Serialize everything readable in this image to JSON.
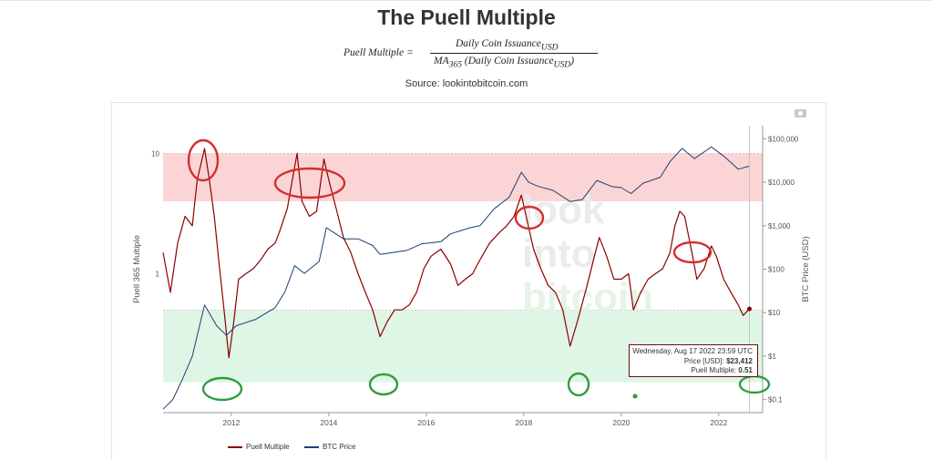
{
  "page": {
    "title": "The Puell Multiple",
    "formula_lhs": "Puell Multiple  =",
    "formula_numerator": "Daily Coin Issuance",
    "formula_num_sub": "USD",
    "formula_den_ma": "MA",
    "formula_den_ma_sub": "365",
    "formula_den_text": " (Daily Coin Issuance",
    "formula_den_sub": "USD",
    "formula_den_close": ")",
    "source": "Source: lookintobitcoin.com",
    "watermark": [
      "look",
      "into",
      "bitcoin"
    ]
  },
  "tooltip": {
    "date": "Wednesday, Aug 17 2022 23:59 UTC",
    "price_label": "Price [USD]: ",
    "price_value": "$23,412",
    "pm_label": "Puell Multiple: ",
    "pm_value": "0.51"
  },
  "chart_data": {
    "type": "line",
    "x_ticks": [
      "2012",
      "2014",
      "2016",
      "2018",
      "2020",
      "2022"
    ],
    "x_range": [
      2010.6,
      2022.9
    ],
    "y_left": {
      "label": "Puell 365 Multiple",
      "scale": "log",
      "range": [
        0.07,
        17
      ],
      "ticks": [
        {
          "value": 10,
          "label": "10"
        },
        {
          "value": 1,
          "label": "1"
        }
      ]
    },
    "y_right": {
      "label": "BTC Price (USD)",
      "scale": "log",
      "range": [
        0.05,
        200000
      ],
      "ticks": [
        {
          "value": 100000,
          "label": "$100,000"
        },
        {
          "value": 10000,
          "label": "$10,000"
        },
        {
          "value": 1000,
          "label": "$1,000"
        },
        {
          "value": 100,
          "label": "$100"
        },
        {
          "value": 10,
          "label": "$10"
        },
        {
          "value": 1,
          "label": "$1"
        },
        {
          "value": 0.1,
          "label": "$0.1"
        }
      ]
    },
    "bands": [
      {
        "zone": "high",
        "from": 4,
        "to": 10,
        "color": "#fbd5d5"
      },
      {
        "zone": "low",
        "from": 0.125,
        "to": 0.5,
        "color": "#dff5e6"
      }
    ],
    "series": [
      {
        "name": "Puell Multiple",
        "axis": "left",
        "color": "#8b0000",
        "points": [
          [
            2010.6,
            1.5
          ],
          [
            2010.75,
            0.7
          ],
          [
            2010.9,
            1.8
          ],
          [
            2011.05,
            3
          ],
          [
            2011.2,
            2.5
          ],
          [
            2011.3,
            6
          ],
          [
            2011.45,
            11
          ],
          [
            2011.55,
            6
          ],
          [
            2011.65,
            3
          ],
          [
            2011.75,
            1.2
          ],
          [
            2011.85,
            0.5
          ],
          [
            2011.95,
            0.2
          ],
          [
            2012.05,
            0.4
          ],
          [
            2012.15,
            0.9
          ],
          [
            2012.3,
            1.0
          ],
          [
            2012.45,
            1.1
          ],
          [
            2012.6,
            1.3
          ],
          [
            2012.75,
            1.6
          ],
          [
            2012.9,
            1.8
          ],
          [
            2013.0,
            2.3
          ],
          [
            2013.15,
            3.5
          ],
          [
            2013.25,
            6
          ],
          [
            2013.35,
            10
          ],
          [
            2013.45,
            4
          ],
          [
            2013.6,
            3
          ],
          [
            2013.75,
            3.3
          ],
          [
            2013.9,
            9
          ],
          [
            2014.0,
            6
          ],
          [
            2014.15,
            3.5
          ],
          [
            2014.3,
            2
          ],
          [
            2014.45,
            1.5
          ],
          [
            2014.6,
            1.0
          ],
          [
            2014.75,
            0.7
          ],
          [
            2014.9,
            0.5
          ],
          [
            2015.05,
            0.3
          ],
          [
            2015.2,
            0.4
          ],
          [
            2015.35,
            0.5
          ],
          [
            2015.5,
            0.5
          ],
          [
            2015.65,
            0.55
          ],
          [
            2015.8,
            0.7
          ],
          [
            2015.95,
            1.1
          ],
          [
            2016.1,
            1.4
          ],
          [
            2016.3,
            1.6
          ],
          [
            2016.5,
            1.2
          ],
          [
            2016.65,
            0.8
          ],
          [
            2016.8,
            0.9
          ],
          [
            2016.95,
            1.0
          ],
          [
            2017.1,
            1.3
          ],
          [
            2017.3,
            1.8
          ],
          [
            2017.5,
            2.2
          ],
          [
            2017.65,
            2.5
          ],
          [
            2017.8,
            3
          ],
          [
            2017.95,
            4.5
          ],
          [
            2018.05,
            3
          ],
          [
            2018.2,
            1.6
          ],
          [
            2018.35,
            1.1
          ],
          [
            2018.5,
            0.8
          ],
          [
            2018.65,
            0.7
          ],
          [
            2018.8,
            0.5
          ],
          [
            2018.95,
            0.25
          ],
          [
            2019.1,
            0.4
          ],
          [
            2019.3,
            0.8
          ],
          [
            2019.45,
            1.4
          ],
          [
            2019.55,
            2.0
          ],
          [
            2019.7,
            1.4
          ],
          [
            2019.85,
            0.9
          ],
          [
            2020.0,
            0.9
          ],
          [
            2020.15,
            1.0
          ],
          [
            2020.25,
            0.5
          ],
          [
            2020.4,
            0.7
          ],
          [
            2020.55,
            0.9
          ],
          [
            2020.7,
            1.0
          ],
          [
            2020.85,
            1.1
          ],
          [
            2021.0,
            1.5
          ],
          [
            2021.1,
            2.5
          ],
          [
            2021.2,
            3.3
          ],
          [
            2021.3,
            3
          ],
          [
            2021.45,
            1.5
          ],
          [
            2021.55,
            0.9
          ],
          [
            2021.7,
            1.1
          ],
          [
            2021.85,
            1.7
          ],
          [
            2021.95,
            1.4
          ],
          [
            2022.1,
            0.9
          ],
          [
            2022.25,
            0.7
          ],
          [
            2022.4,
            0.55
          ],
          [
            2022.5,
            0.45
          ],
          [
            2022.63,
            0.51
          ]
        ]
      },
      {
        "name": "BTC Price",
        "axis": "right",
        "color": "#1f3f70",
        "points": [
          [
            2010.6,
            0.06
          ],
          [
            2010.8,
            0.1
          ],
          [
            2011.0,
            0.3
          ],
          [
            2011.2,
            1
          ],
          [
            2011.45,
            15
          ],
          [
            2011.7,
            5
          ],
          [
            2011.9,
            3
          ],
          [
            2012.1,
            5
          ],
          [
            2012.5,
            7
          ],
          [
            2012.9,
            13
          ],
          [
            2013.1,
            30
          ],
          [
            2013.3,
            120
          ],
          [
            2013.5,
            80
          ],
          [
            2013.8,
            150
          ],
          [
            2013.95,
            900
          ],
          [
            2014.1,
            700
          ],
          [
            2014.3,
            500
          ],
          [
            2014.6,
            500
          ],
          [
            2014.9,
            350
          ],
          [
            2015.05,
            220
          ],
          [
            2015.3,
            240
          ],
          [
            2015.6,
            270
          ],
          [
            2015.9,
            380
          ],
          [
            2016.3,
            430
          ],
          [
            2016.5,
            650
          ],
          [
            2016.9,
            900
          ],
          [
            2017.1,
            1000
          ],
          [
            2017.4,
            2500
          ],
          [
            2017.7,
            4500
          ],
          [
            2017.95,
            17000
          ],
          [
            2018.1,
            10000
          ],
          [
            2018.3,
            8000
          ],
          [
            2018.6,
            6500
          ],
          [
            2018.95,
            3600
          ],
          [
            2019.2,
            4000
          ],
          [
            2019.5,
            11000
          ],
          [
            2019.8,
            8000
          ],
          [
            2020.0,
            7500
          ],
          [
            2020.2,
            5500
          ],
          [
            2020.45,
            9500
          ],
          [
            2020.8,
            13000
          ],
          [
            2021.0,
            30000
          ],
          [
            2021.25,
            60000
          ],
          [
            2021.5,
            35000
          ],
          [
            2021.85,
            65000
          ],
          [
            2022.1,
            40000
          ],
          [
            2022.4,
            20000
          ],
          [
            2022.63,
            23412
          ]
        ]
      }
    ],
    "annotations": [
      {
        "shape": "ellipse",
        "color": "#d32f2f",
        "near": "2011 peak"
      },
      {
        "shape": "ellipse",
        "color": "#d32f2f",
        "near": "2013 peaks"
      },
      {
        "shape": "ellipse",
        "color": "#d32f2f",
        "near": "2017 peak"
      },
      {
        "shape": "ellipse",
        "color": "#d32f2f",
        "near": "2021 peak"
      },
      {
        "shape": "ellipse",
        "color": "#2e9e3e",
        "near": "2011 bottom"
      },
      {
        "shape": "ellipse",
        "color": "#2e9e3e",
        "near": "2015 bottom"
      },
      {
        "shape": "ellipse",
        "color": "#2e9e3e",
        "near": "2018 bottom"
      },
      {
        "shape": "ellipse",
        "color": "#2e9e3e",
        "near": "2022 bottom"
      }
    ]
  }
}
